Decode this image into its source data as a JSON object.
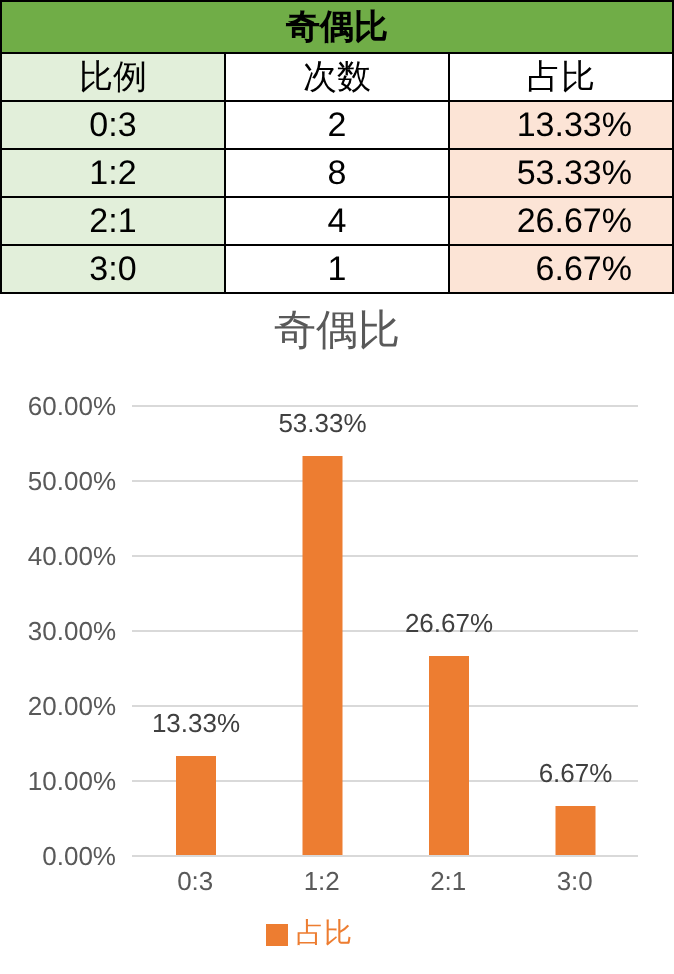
{
  "chart_data": [
    {
      "type": "other",
      "title": "奇偶比",
      "xlabel": "比例",
      "categories": [
        "0:3",
        "1:2",
        "2:1",
        "3:0"
      ],
      "series": [
        {
          "name": "次数",
          "values": [
            2,
            8,
            4,
            1
          ],
          "value_labels": [
            "2",
            "8",
            "4",
            "1"
          ]
        },
        {
          "name": "占比",
          "values": [
            13.33,
            53.33,
            26.67,
            6.67
          ],
          "value_labels": [
            "13.33%",
            "53.33%",
            "26.67%",
            "6.67%"
          ]
        }
      ]
    },
    {
      "type": "bar",
      "title": "奇偶比",
      "categories": [
        "0:3",
        "1:2",
        "2:1",
        "3:0"
      ],
      "series": [
        {
          "name": "占比",
          "color": "#ed7d31",
          "values": [
            13.33,
            53.33,
            26.67,
            6.67
          ],
          "value_labels": [
            "13.33%",
            "53.33%",
            "26.67%",
            "6.67%"
          ]
        }
      ],
      "ylim": [
        0,
        60
      ],
      "yticks": [
        {
          "value": 0,
          "label": "0.00%"
        },
        {
          "value": 10,
          "label": "10.00%"
        },
        {
          "value": 20,
          "label": "20.00%"
        },
        {
          "value": 30,
          "label": "30.00%"
        },
        {
          "value": 40,
          "label": "40.00%"
        },
        {
          "value": 50,
          "label": "50.00%"
        },
        {
          "value": 60,
          "label": "60.00%"
        }
      ],
      "grid": "y",
      "legend": "bottom"
    }
  ]
}
